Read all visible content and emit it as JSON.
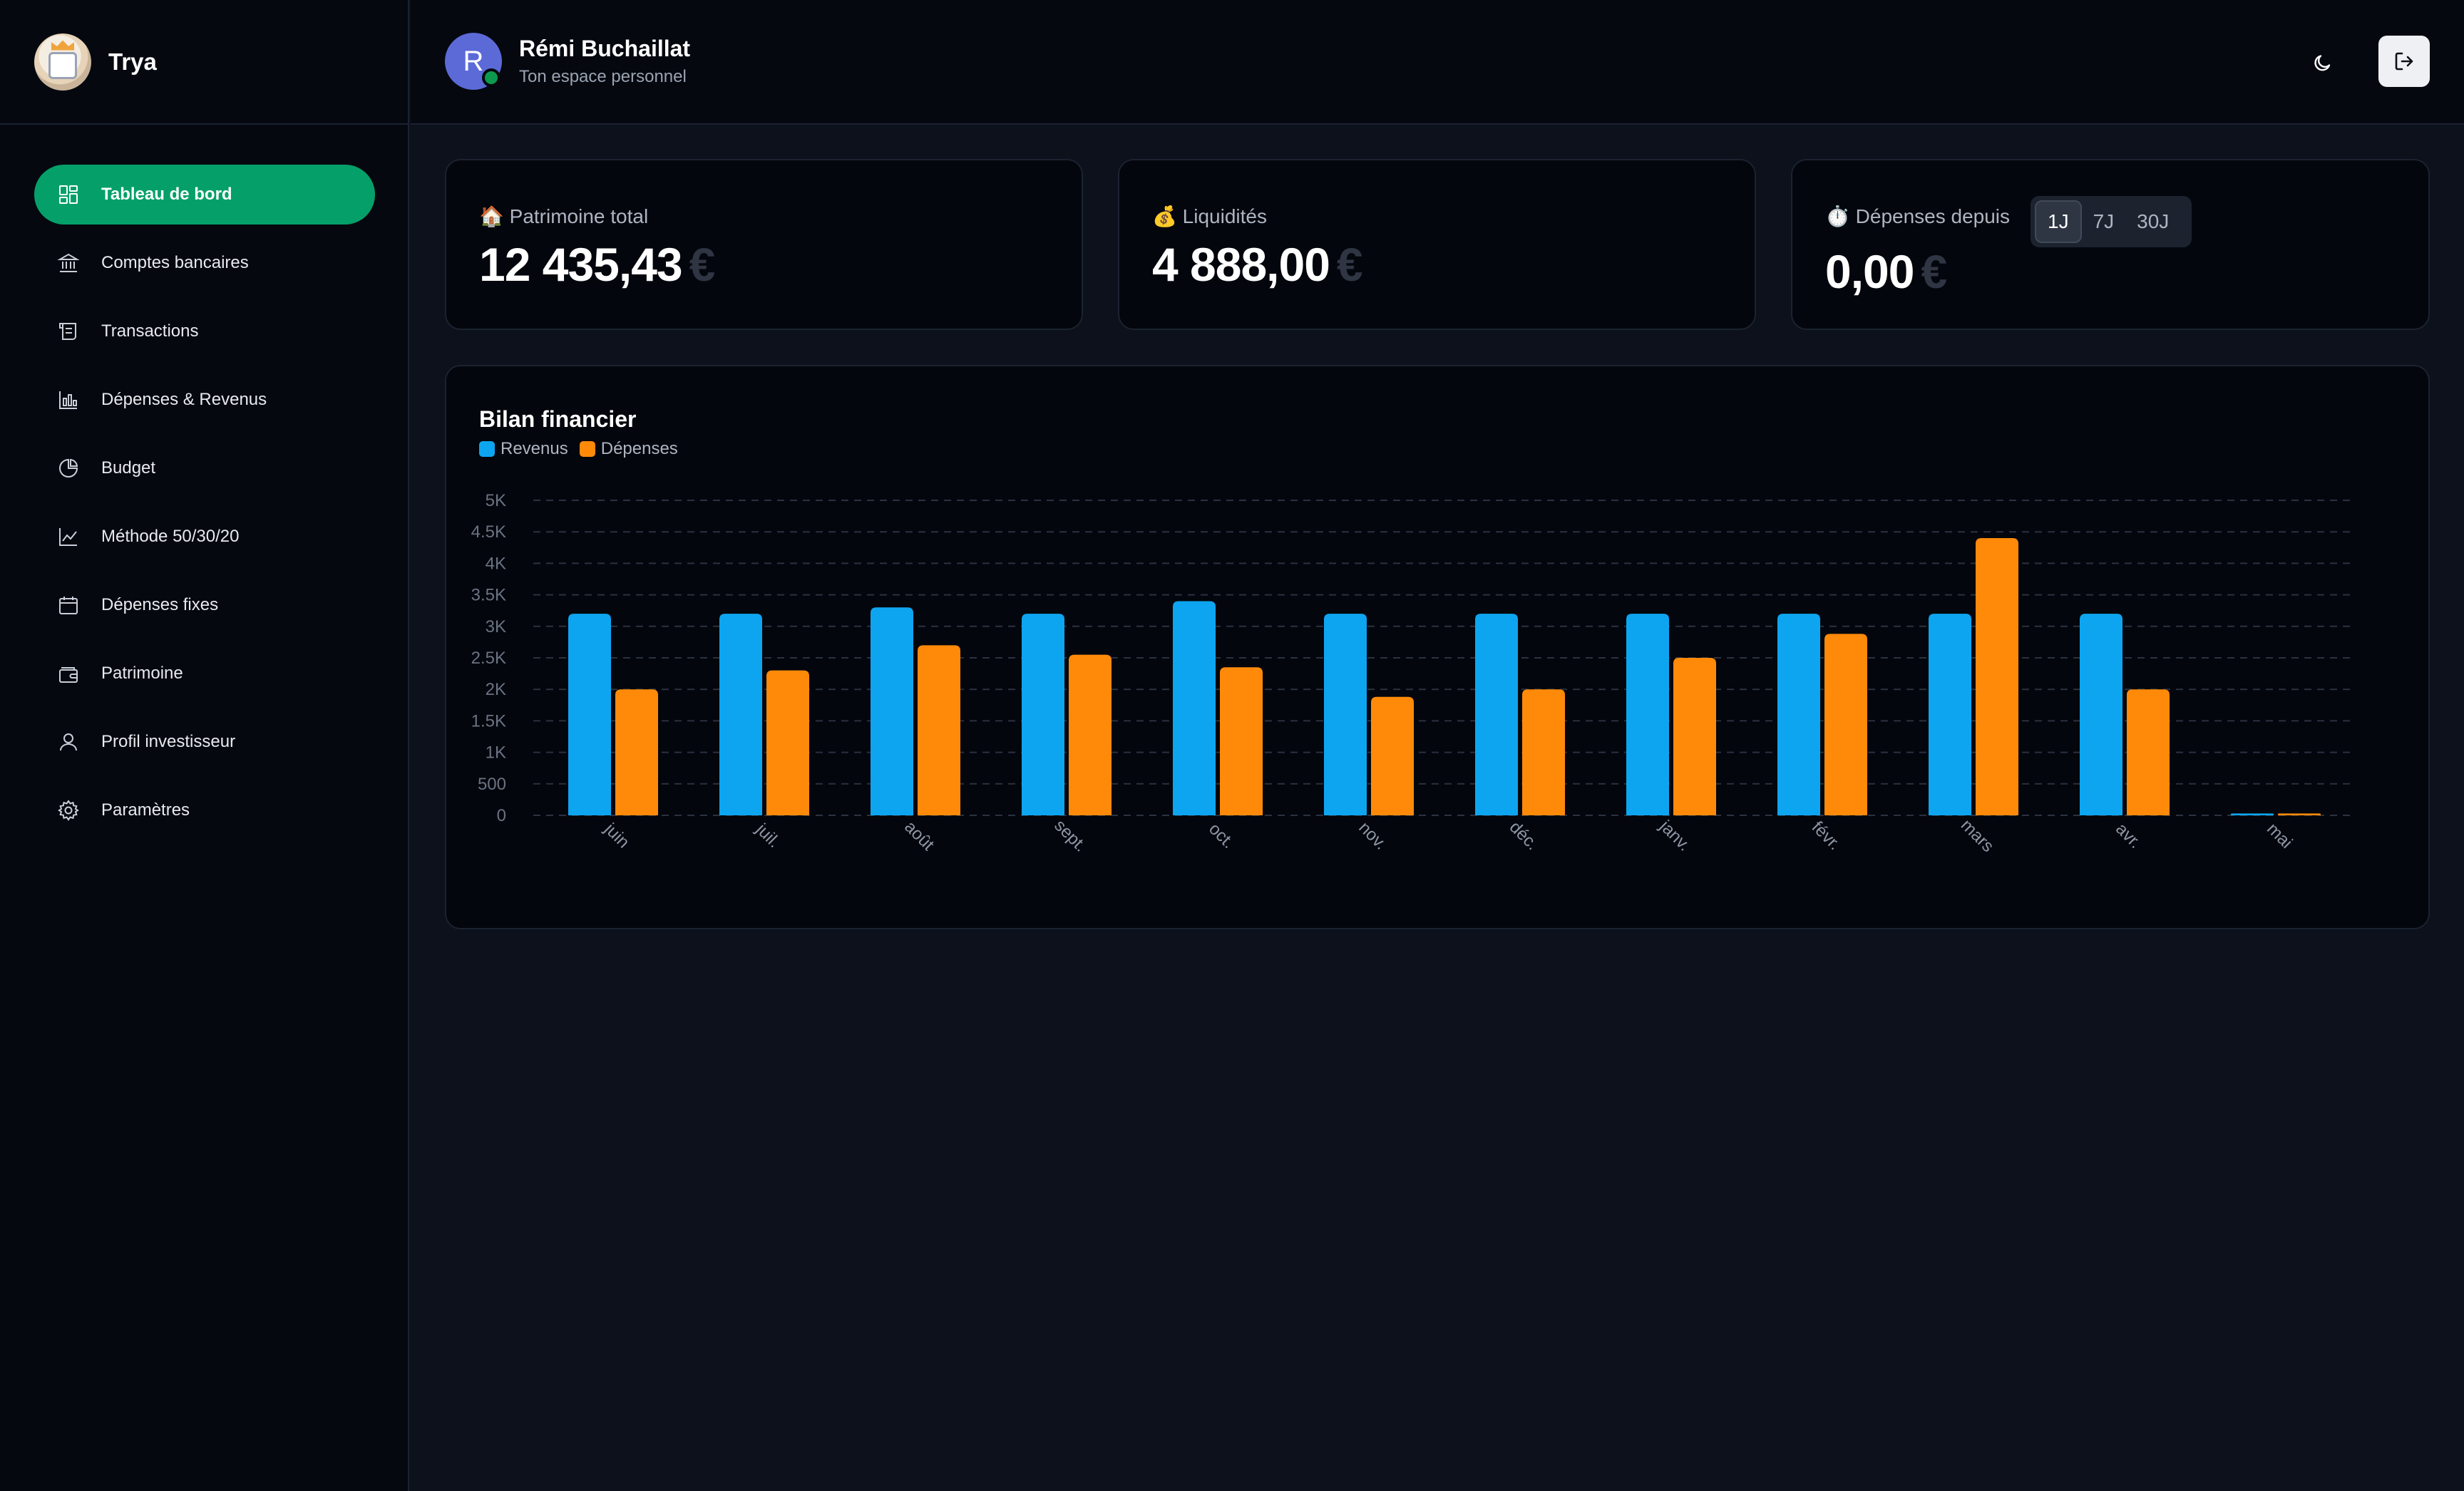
{
  "brand": {
    "name": "Trya"
  },
  "sidebar": {
    "items": [
      {
        "label": "Tableau de bord",
        "icon": "dashboard-icon",
        "active": true
      },
      {
        "label": "Comptes bancaires",
        "icon": "bank-icon"
      },
      {
        "label": "Transactions",
        "icon": "receipt-icon"
      },
      {
        "label": "Dépenses & Revenus",
        "icon": "bar-chart-icon"
      },
      {
        "label": "Budget",
        "icon": "pie-chart-icon"
      },
      {
        "label": "Méthode 50/30/20",
        "icon": "line-chart-icon"
      },
      {
        "label": "Dépenses fixes",
        "icon": "calendar-icon"
      },
      {
        "label": "Patrimoine",
        "icon": "wallet-icon"
      },
      {
        "label": "Profil investisseur",
        "icon": "user-icon"
      },
      {
        "label": "Paramètres",
        "icon": "gear-icon"
      }
    ]
  },
  "header": {
    "avatar_letter": "R",
    "user_name": "Rémi Buchaillat",
    "subtitle": "Ton espace personnel"
  },
  "stats": {
    "patrimoine": {
      "emoji": "🏠",
      "label": "Patrimoine total",
      "value": "12 435,43",
      "currency": "€"
    },
    "liquidites": {
      "emoji": "💰",
      "label": "Liquidités",
      "value": "4 888,00",
      "currency": "€"
    },
    "depenses": {
      "emoji": "⏱️",
      "label": "Dépenses depuis",
      "value": "0,00",
      "currency": "€",
      "periods": [
        "1J",
        "7J",
        "30J"
      ],
      "selected_period": "1J"
    }
  },
  "chart_data": {
    "type": "bar",
    "title": "Bilan financier",
    "categories": [
      "juin",
      "juil.",
      "août",
      "sept.",
      "oct.",
      "nov.",
      "déc.",
      "janv.",
      "févr.",
      "mars",
      "avr.",
      "mai"
    ],
    "series": [
      {
        "name": "Revenus",
        "color": "#0ea5f0",
        "values": [
          3200,
          3200,
          3300,
          3200,
          3400,
          3200,
          3200,
          3200,
          3200,
          3200,
          3200,
          30
        ]
      },
      {
        "name": "Dépenses",
        "color": "#ff8a0a",
        "values": [
          2000,
          2300,
          2700,
          2550,
          2350,
          1880,
          2000,
          2500,
          2880,
          4400,
          2000,
          30
        ]
      }
    ],
    "yticks": [
      "0",
      "500",
      "1K",
      "1.5K",
      "2K",
      "2.5K",
      "3K",
      "3.5K",
      "4K",
      "4.5K",
      "5K"
    ],
    "ylim": [
      0,
      5000
    ],
    "grid": true,
    "legend_position": "top-left"
  }
}
